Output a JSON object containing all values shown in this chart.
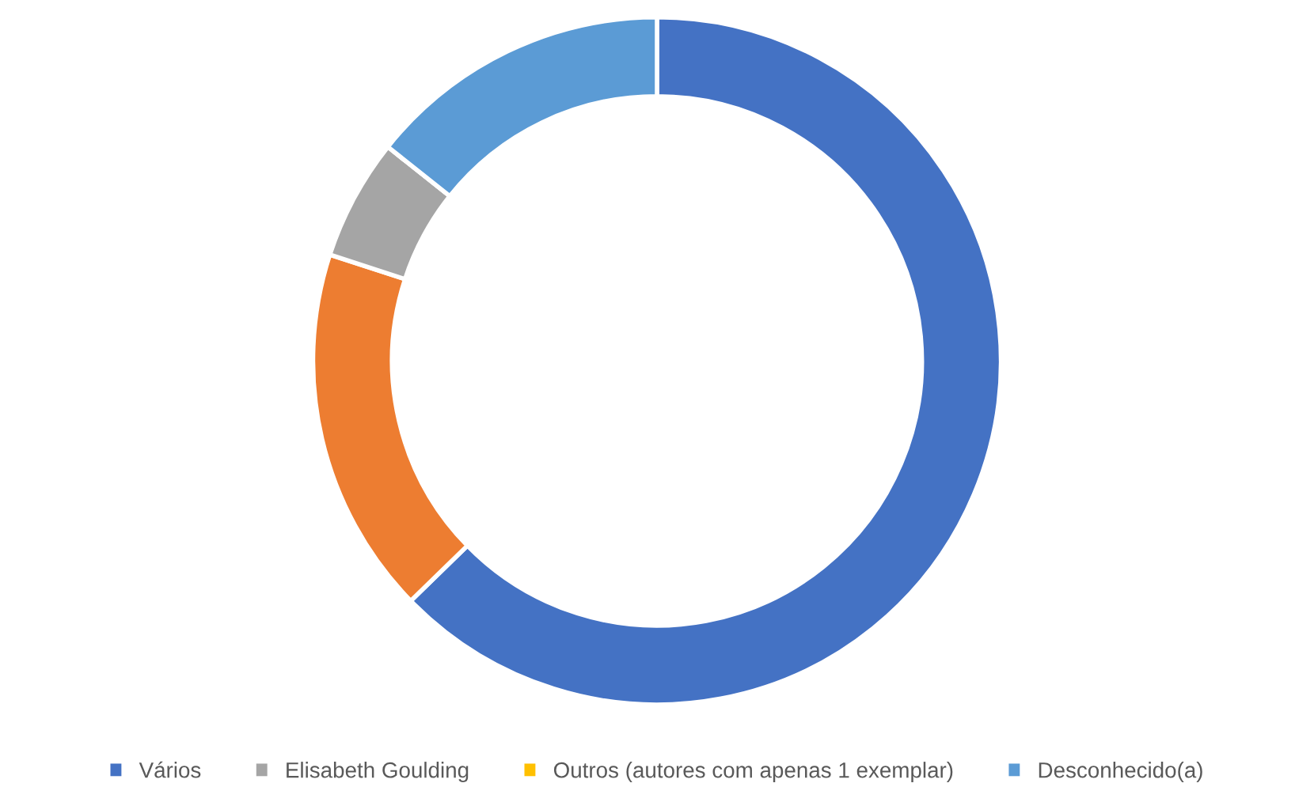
{
  "chart_data": {
    "type": "donut",
    "categories": [
      "Vários",
      null,
      "Elisabeth Goulding",
      "Outros (autores com apenas 1 exemplar)",
      "Desconhecido(a)"
    ],
    "values": [
      62.7,
      17.3,
      5.7,
      0,
      14.3
    ],
    "colors": [
      "#4472c4",
      "#ed7d31",
      "#a5a5a5",
      "#ffc000",
      "#5b9bd5"
    ],
    "legend": "bottom"
  }
}
